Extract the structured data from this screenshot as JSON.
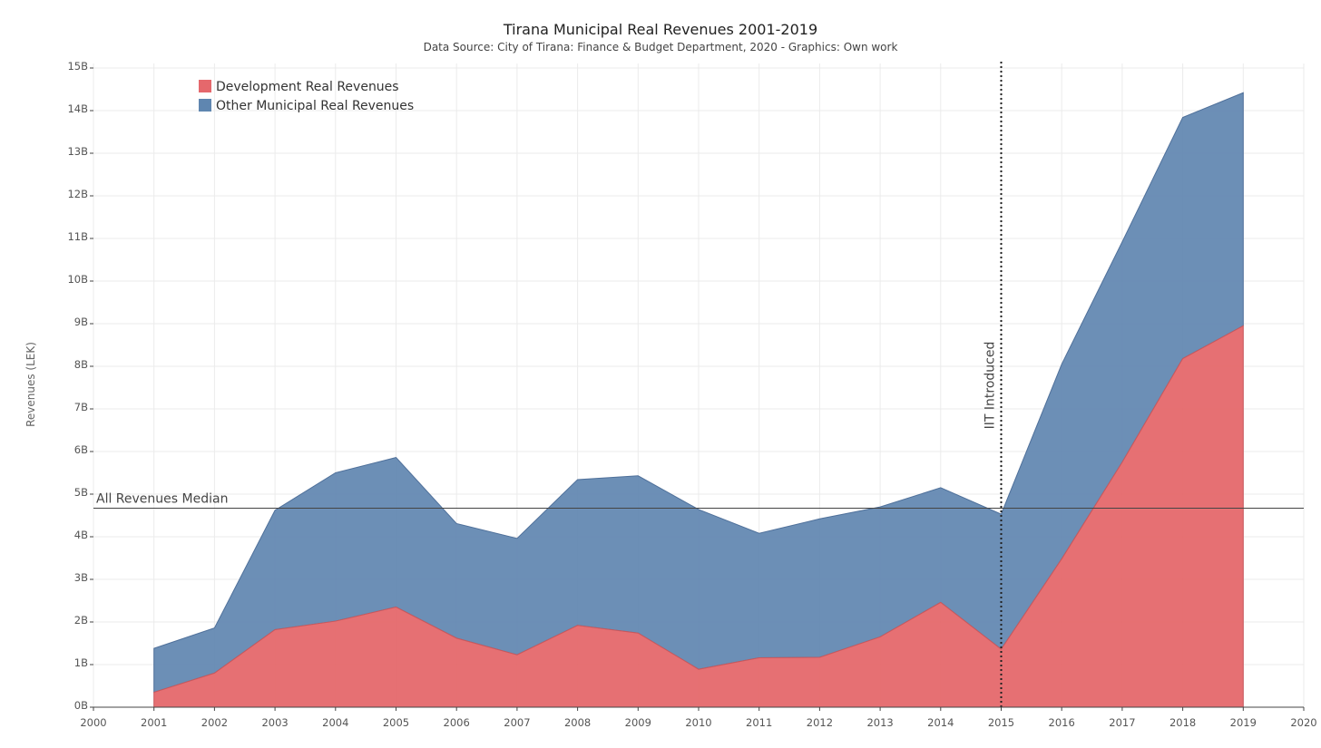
{
  "chart_data": {
    "type": "area",
    "stacked": true,
    "title": "Tirana Municipal Real Revenues 2001-2019",
    "subtitle": "Data Source: City of Tirana: Finance & Budget Department, 2020 - Graphics: Own work",
    "ylabel": "Revenues (LEK)",
    "xlabel": "",
    "xlim": [
      2000,
      2020
    ],
    "ylim": [
      0,
      15000000000
    ],
    "x_ticks": [
      2000,
      2001,
      2002,
      2003,
      2004,
      2005,
      2006,
      2007,
      2008,
      2009,
      2010,
      2011,
      2012,
      2013,
      2014,
      2015,
      2016,
      2017,
      2018,
      2019,
      2020
    ],
    "y_ticks": [
      {
        "value": 0,
        "label": "0B"
      },
      {
        "value": 1000000000,
        "label": "1B"
      },
      {
        "value": 2000000000,
        "label": "2B"
      },
      {
        "value": 3000000000,
        "label": "3B"
      },
      {
        "value": 4000000000,
        "label": "4B"
      },
      {
        "value": 5000000000,
        "label": "5B"
      },
      {
        "value": 6000000000,
        "label": "6B"
      },
      {
        "value": 7000000000,
        "label": "7B"
      },
      {
        "value": 8000000000,
        "label": "8B"
      },
      {
        "value": 9000000000,
        "label": "9B"
      },
      {
        "value": 10000000000,
        "label": "10B"
      },
      {
        "value": 11000000000,
        "label": "11B"
      },
      {
        "value": 12000000000,
        "label": "12B"
      },
      {
        "value": 13000000000,
        "label": "13B"
      },
      {
        "value": 14000000000,
        "label": "14B"
      },
      {
        "value": 15000000000,
        "label": "15B"
      }
    ],
    "grid": true,
    "legend_position": "top-left",
    "x": [
      2001,
      2002,
      2003,
      2004,
      2005,
      2006,
      2007,
      2008,
      2009,
      2010,
      2011,
      2012,
      2013,
      2014,
      2015,
      2016,
      2017,
      2018,
      2019
    ],
    "series": [
      {
        "name": "Development Real Revenues",
        "color": "#e5686c",
        "values": [
          350000000,
          800000000,
          1820000000,
          2020000000,
          2350000000,
          1620000000,
          1230000000,
          1920000000,
          1740000000,
          890000000,
          1160000000,
          1170000000,
          1650000000,
          2460000000,
          1360000000,
          3480000000,
          5750000000,
          8180000000,
          8950000000
        ]
      },
      {
        "name": "Other Municipal Real Revenues",
        "color": "#5f86b0",
        "values": [
          1030000000,
          1060000000,
          2800000000,
          3480000000,
          3510000000,
          2690000000,
          2730000000,
          3420000000,
          3690000000,
          3750000000,
          2920000000,
          3250000000,
          3050000000,
          2690000000,
          3170000000,
          4570000000,
          5170000000,
          5660000000,
          5470000000
        ]
      }
    ],
    "annotations": [
      {
        "type": "hline",
        "value": 4670000000,
        "label": "All Revenues Median"
      },
      {
        "type": "vline",
        "value": 2015,
        "label": "IIT Introduced",
        "style": "dotted"
      }
    ]
  }
}
